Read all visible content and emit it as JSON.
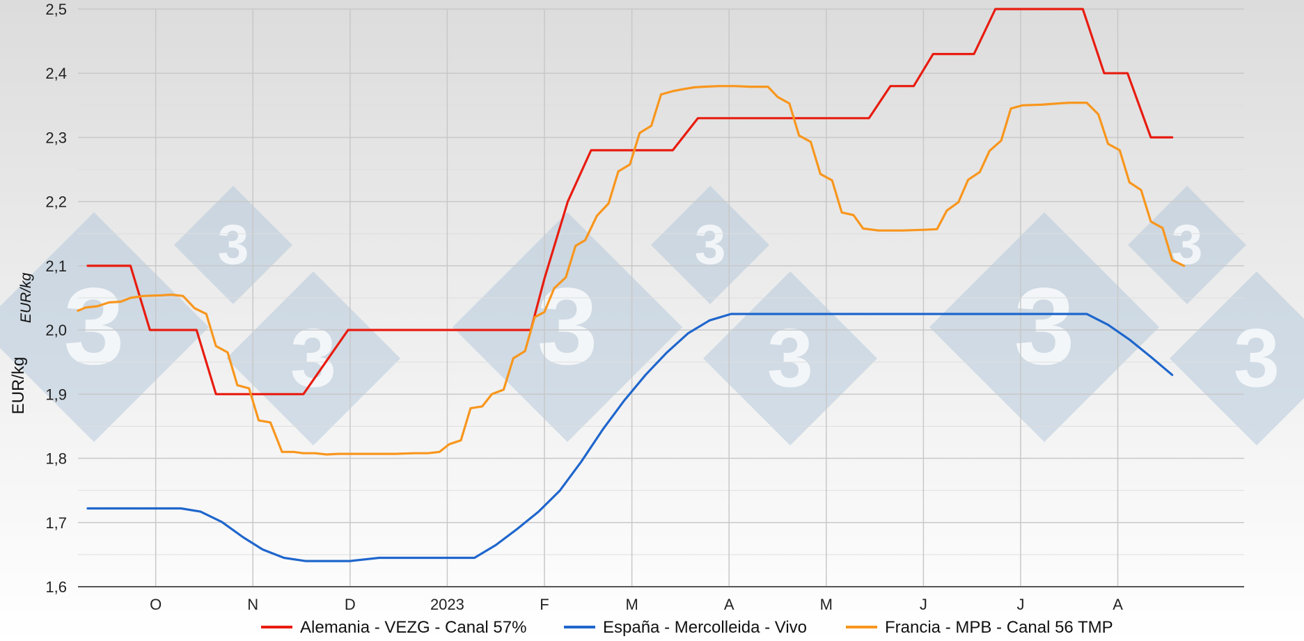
{
  "chart_data": {
    "type": "line",
    "ylabel": "EUR/kg",
    "ylabel_secondary": "EUR/kg",
    "ylim": [
      1.6,
      2.5
    ],
    "yticks": [
      "1,6",
      "1,7",
      "1,8",
      "1,9",
      "2,0",
      "2,1",
      "2,2",
      "2,3",
      "2,4",
      "2,5"
    ],
    "grid": true,
    "legend_position": "bottom",
    "x_range": [
      0,
      60
    ],
    "months": [
      {
        "label": "O",
        "x": 4
      },
      {
        "label": "N",
        "x": 9
      },
      {
        "label": "D",
        "x": 14
      },
      {
        "label": "2023",
        "x": 19
      },
      {
        "label": "F",
        "x": 24
      },
      {
        "label": "M",
        "x": 28.5
      },
      {
        "label": "A",
        "x": 33.5
      },
      {
        "label": "M",
        "x": 38.5
      },
      {
        "label": "J",
        "x": 43.5
      },
      {
        "label": "J",
        "x": 48.5
      },
      {
        "label": "A",
        "x": 53.5
      }
    ],
    "series": [
      {
        "name": "Alemania - VEZG - Canal 57%",
        "color": "#e81c10",
        "points": [
          [
            0.5,
            2.1
          ],
          [
            2.7,
            2.1
          ],
          [
            3.7,
            2.0
          ],
          [
            6.1,
            2.0
          ],
          [
            7.1,
            1.9
          ],
          [
            11.6,
            1.9
          ],
          [
            13.9,
            2.0
          ],
          [
            23.3,
            2.0
          ],
          [
            24.0,
            2.08
          ],
          [
            25.2,
            2.2
          ],
          [
            26.4,
            2.28
          ],
          [
            30.6,
            2.28
          ],
          [
            31.9,
            2.33
          ],
          [
            40.7,
            2.33
          ],
          [
            41.8,
            2.38
          ],
          [
            43.0,
            2.38
          ],
          [
            44.0,
            2.43
          ],
          [
            46.1,
            2.43
          ],
          [
            47.2,
            2.5
          ],
          [
            51.7,
            2.5
          ],
          [
            52.8,
            2.4
          ],
          [
            54.0,
            2.4
          ],
          [
            55.2,
            2.3
          ],
          [
            56.3,
            2.3
          ]
        ]
      },
      {
        "name": "España - Mercolleida - Vivo",
        "color": "#1f66cc",
        "points": [
          [
            0.5,
            1.722
          ],
          [
            5.3,
            1.722
          ],
          [
            6.3,
            1.717
          ],
          [
            7.4,
            1.701
          ],
          [
            8.5,
            1.677
          ],
          [
            9.5,
            1.658
          ],
          [
            10.6,
            1.645
          ],
          [
            11.7,
            1.64
          ],
          [
            14.0,
            1.64
          ],
          [
            15.5,
            1.645
          ],
          [
            20.4,
            1.645
          ],
          [
            21.5,
            1.665
          ],
          [
            22.6,
            1.69
          ],
          [
            23.7,
            1.717
          ],
          [
            24.8,
            1.75
          ],
          [
            25.9,
            1.795
          ],
          [
            27.0,
            1.845
          ],
          [
            28.1,
            1.89
          ],
          [
            29.2,
            1.93
          ],
          [
            30.3,
            1.965
          ],
          [
            31.4,
            1.995
          ],
          [
            32.5,
            2.015
          ],
          [
            33.6,
            2.025
          ],
          [
            51.9,
            2.025
          ],
          [
            53.0,
            2.008
          ],
          [
            54.1,
            1.985
          ],
          [
            55.2,
            1.958
          ],
          [
            56.3,
            1.93
          ]
        ]
      },
      {
        "name": "Francia - MPB - Canal 56 TMP",
        "color": "#f8961d",
        "points": [
          [
            0.0,
            2.03
          ],
          [
            0.4,
            2.035
          ],
          [
            1.0,
            2.037
          ],
          [
            1.6,
            2.043
          ],
          [
            2.2,
            2.044
          ],
          [
            2.7,
            2.05
          ],
          [
            3.4,
            2.053
          ],
          [
            4.3,
            2.054
          ],
          [
            4.8,
            2.055
          ],
          [
            5.4,
            2.053
          ],
          [
            6.0,
            2.034
          ],
          [
            6.6,
            2.025
          ],
          [
            7.1,
            1.975
          ],
          [
            7.7,
            1.965
          ],
          [
            8.2,
            1.914
          ],
          [
            8.8,
            1.909
          ],
          [
            9.3,
            1.859
          ],
          [
            9.9,
            1.856
          ],
          [
            10.5,
            1.81
          ],
          [
            11.1,
            1.81
          ],
          [
            11.6,
            1.808
          ],
          [
            12.2,
            1.808
          ],
          [
            12.8,
            1.806
          ],
          [
            13.4,
            1.807
          ],
          [
            14.4,
            1.807
          ],
          [
            15.3,
            1.807
          ],
          [
            16.3,
            1.807
          ],
          [
            17.3,
            1.808
          ],
          [
            18.0,
            1.808
          ],
          [
            18.6,
            1.81
          ],
          [
            19.1,
            1.822
          ],
          [
            19.7,
            1.828
          ],
          [
            20.2,
            1.878
          ],
          [
            20.8,
            1.881
          ],
          [
            21.3,
            1.9
          ],
          [
            21.9,
            1.907
          ],
          [
            22.4,
            1.956
          ],
          [
            23.0,
            1.967
          ],
          [
            23.5,
            2.02
          ],
          [
            24.0,
            2.028
          ],
          [
            24.5,
            2.065
          ],
          [
            25.1,
            2.082
          ],
          [
            25.6,
            2.131
          ],
          [
            26.1,
            2.14
          ],
          [
            26.7,
            2.178
          ],
          [
            27.3,
            2.197
          ],
          [
            27.8,
            2.247
          ],
          [
            28.4,
            2.258
          ],
          [
            28.9,
            2.307
          ],
          [
            29.5,
            2.318
          ],
          [
            30.0,
            2.367
          ],
          [
            30.6,
            2.372
          ],
          [
            31.1,
            2.375
          ],
          [
            31.7,
            2.378
          ],
          [
            32.2,
            2.379
          ],
          [
            33.0,
            2.38
          ],
          [
            33.8,
            2.38
          ],
          [
            34.6,
            2.379
          ],
          [
            35.5,
            2.379
          ],
          [
            36.0,
            2.363
          ],
          [
            36.6,
            2.353
          ],
          [
            37.1,
            2.303
          ],
          [
            37.7,
            2.293
          ],
          [
            38.2,
            2.243
          ],
          [
            38.8,
            2.233
          ],
          [
            39.3,
            2.183
          ],
          [
            39.9,
            2.179
          ],
          [
            40.4,
            2.158
          ],
          [
            41.2,
            2.155
          ],
          [
            42.4,
            2.155
          ],
          [
            43.5,
            2.156
          ],
          [
            44.2,
            2.157
          ],
          [
            44.7,
            2.186
          ],
          [
            45.3,
            2.199
          ],
          [
            45.8,
            2.234
          ],
          [
            46.4,
            2.246
          ],
          [
            46.9,
            2.279
          ],
          [
            47.5,
            2.295
          ],
          [
            48.0,
            2.345
          ],
          [
            48.6,
            2.35
          ],
          [
            49.6,
            2.351
          ],
          [
            50.0,
            2.352
          ],
          [
            51.0,
            2.354
          ],
          [
            51.9,
            2.354
          ],
          [
            52.5,
            2.336
          ],
          [
            53.0,
            2.29
          ],
          [
            53.6,
            2.28
          ],
          [
            54.1,
            2.23
          ],
          [
            54.7,
            2.218
          ],
          [
            55.2,
            2.169
          ],
          [
            55.8,
            2.159
          ],
          [
            56.3,
            2.109
          ],
          [
            56.9,
            2.1
          ]
        ]
      }
    ]
  }
}
